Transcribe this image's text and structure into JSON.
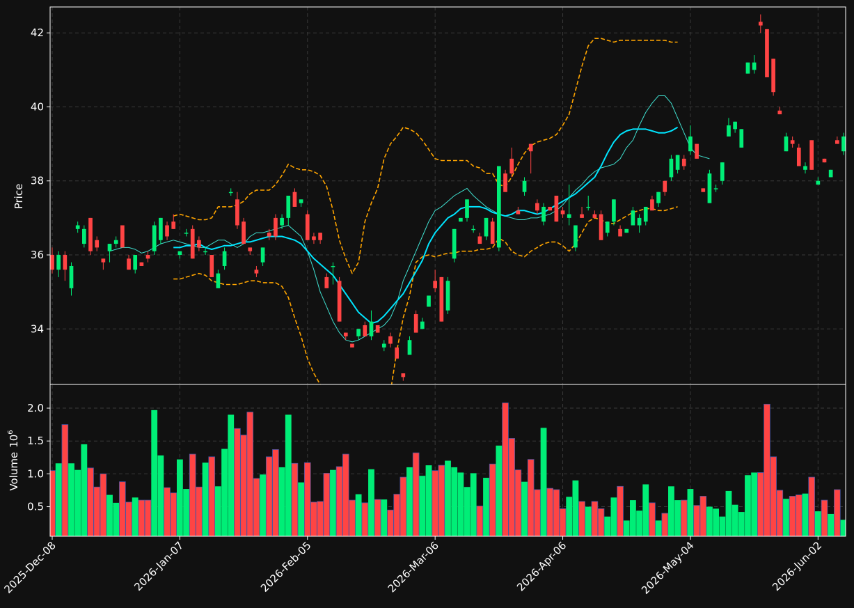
{
  "chart_data": {
    "type": "candlestick",
    "style": "dark background, dashed grid",
    "colors": {
      "up": "#00ee77",
      "down": "#ff4444",
      "background": "#111111",
      "bollinger": "#ffa500",
      "ma_fast": "#40e0d0",
      "ma_slow": "#00e5ff"
    },
    "x_tick_labels": [
      "2025-Dec-08",
      "2026-Jan-07",
      "2026-Feb-05",
      "2026-Mar-06",
      "2026-Apr-06",
      "2026-May-04",
      "2026-Jun-02"
    ],
    "x_tick_index": [
      0,
      20,
      40,
      60,
      80,
      100,
      120
    ],
    "price_panel": {
      "ylabel": "Price",
      "ylim": [
        32.5,
        42.7
      ],
      "yticks": [
        34,
        36,
        38,
        40,
        42
      ],
      "grid": true
    },
    "volume_panel": {
      "ylabel": "Volume",
      "ylabel_exponent": "10",
      "ylabel_power": "6",
      "ylim": [
        0.05,
        2.35
      ],
      "yticks": [
        0.5,
        1.0,
        1.5,
        2.0
      ],
      "ytick_labels": [
        "0.5",
        "1.0",
        "1.5",
        "2.0"
      ],
      "grid": true
    },
    "candles": [
      [
        36.0,
        36.2,
        35.5,
        35.6,
        1.05
      ],
      [
        35.6,
        36.1,
        35.4,
        36.0,
        1.16
      ],
      [
        36.0,
        36.1,
        35.3,
        35.6,
        1.75
      ],
      [
        35.1,
        35.8,
        34.9,
        35.7,
        1.16
      ],
      [
        36.7,
        36.9,
        36.6,
        36.8,
        1.06
      ],
      [
        36.3,
        36.8,
        36.2,
        36.7,
        1.45
      ],
      [
        37.0,
        37.0,
        36.0,
        36.1,
        1.09
      ],
      [
        36.4,
        36.5,
        36.1,
        36.2,
        0.8
      ],
      [
        35.9,
        35.9,
        35.6,
        35.8,
        1.0
      ],
      [
        36.1,
        36.3,
        35.8,
        36.3,
        0.68
      ],
      [
        36.3,
        36.5,
        36.2,
        36.4,
        0.56
      ],
      [
        36.8,
        36.8,
        36.2,
        36.2,
        0.88
      ],
      [
        35.9,
        36.0,
        35.6,
        35.6,
        0.57
      ],
      [
        35.6,
        36.0,
        35.5,
        36.0,
        0.64
      ],
      [
        35.8,
        35.8,
        35.7,
        35.7,
        0.6
      ],
      [
        36.0,
        36.1,
        35.8,
        35.9,
        0.6
      ],
      [
        36.1,
        36.9,
        36.0,
        36.8,
        1.97
      ],
      [
        36.4,
        37.0,
        36.3,
        37.0,
        1.28
      ],
      [
        36.8,
        36.9,
        36.4,
        36.5,
        0.79
      ],
      [
        36.9,
        37.1,
        36.7,
        36.7,
        0.71
      ],
      [
        36.0,
        36.1,
        35.9,
        36.1,
        1.22
      ],
      [
        36.6,
        36.7,
        36.5,
        36.6,
        0.77
      ],
      [
        36.7,
        36.8,
        35.9,
        35.9,
        1.3
      ],
      [
        36.4,
        36.5,
        36.1,
        36.2,
        0.8
      ],
      [
        36.1,
        36.2,
        36.0,
        36.1,
        1.17
      ],
      [
        36.0,
        36.0,
        35.4,
        35.4,
        1.26
      ],
      [
        35.1,
        35.6,
        35.1,
        35.5,
        0.81
      ],
      [
        35.7,
        36.2,
        35.6,
        36.1,
        1.38
      ],
      [
        37.7,
        37.8,
        37.6,
        37.7,
        1.9
      ],
      [
        37.5,
        37.7,
        36.7,
        36.8,
        1.69
      ],
      [
        36.9,
        37.0,
        36.3,
        36.3,
        1.59
      ],
      [
        36.2,
        36.2,
        36.0,
        36.1,
        1.94
      ],
      [
        35.6,
        35.7,
        35.4,
        35.5,
        0.93
      ],
      [
        35.8,
        36.2,
        35.7,
        36.2,
        0.99
      ],
      [
        36.6,
        36.7,
        36.4,
        36.5,
        1.26
      ],
      [
        37.0,
        37.1,
        36.4,
        36.5,
        1.37
      ],
      [
        36.8,
        37.1,
        36.7,
        37.0,
        1.1
      ],
      [
        37.0,
        37.6,
        36.8,
        37.6,
        1.9
      ],
      [
        37.7,
        37.8,
        37.3,
        37.3,
        1.16
      ],
      [
        37.4,
        37.5,
        37.3,
        37.5,
        0.87
      ],
      [
        37.1,
        37.2,
        36.4,
        36.4,
        1.17
      ],
      [
        36.5,
        36.6,
        36.3,
        36.4,
        0.57
      ],
      [
        36.6,
        36.6,
        36.3,
        36.4,
        0.58
      ],
      [
        35.4,
        35.5,
        35.1,
        35.1,
        1.01
      ],
      [
        35.7,
        35.8,
        35.2,
        35.7,
        1.06
      ],
      [
        35.3,
        35.4,
        34.2,
        34.2,
        1.11
      ],
      [
        33.9,
        33.9,
        33.7,
        33.8,
        1.3
      ],
      [
        33.6,
        33.6,
        33.5,
        33.5,
        0.6
      ],
      [
        33.8,
        34.0,
        33.7,
        34.0,
        0.69
      ],
      [
        34.1,
        34.2,
        33.8,
        33.8,
        0.56
      ],
      [
        33.8,
        34.5,
        33.7,
        34.2,
        1.07
      ],
      [
        34.1,
        34.1,
        33.9,
        33.9,
        0.61
      ],
      [
        33.5,
        33.7,
        33.4,
        33.6,
        0.61
      ],
      [
        33.8,
        33.9,
        33.5,
        33.6,
        0.45
      ],
      [
        33.5,
        33.5,
        33.2,
        33.2,
        0.69
      ],
      [
        32.8,
        32.8,
        32.6,
        32.7,
        0.95
      ],
      [
        33.3,
        33.8,
        33.3,
        33.7,
        1.1
      ],
      [
        34.4,
        34.5,
        33.9,
        33.9,
        1.32
      ],
      [
        34.0,
        34.3,
        34.0,
        34.2,
        0.97
      ],
      [
        34.6,
        34.9,
        34.6,
        34.9,
        1.13
      ],
      [
        35.3,
        35.6,
        35.0,
        35.1,
        1.05
      ],
      [
        35.4,
        35.4,
        34.2,
        34.2,
        1.13
      ],
      [
        34.5,
        35.4,
        34.4,
        35.3,
        1.2
      ],
      [
        35.9,
        36.7,
        35.8,
        36.7,
        1.1
      ],
      [
        36.9,
        37.0,
        36.9,
        37.0,
        1.02
      ],
      [
        37.0,
        37.5,
        36.9,
        37.5,
        0.8
      ],
      [
        36.7,
        36.8,
        36.6,
        36.7,
        1.01
      ],
      [
        36.5,
        36.6,
        36.3,
        36.3,
        0.51
      ],
      [
        36.5,
        37.0,
        36.4,
        37.0,
        0.94
      ],
      [
        36.9,
        37.0,
        36.3,
        36.3,
        1.15
      ],
      [
        36.2,
        38.4,
        36.1,
        38.4,
        1.43
      ],
      [
        38.2,
        38.3,
        37.7,
        37.7,
        2.08
      ],
      [
        38.6,
        38.9,
        38.1,
        38.2,
        1.54
      ],
      [
        37.2,
        37.3,
        37.1,
        37.1,
        1.06
      ],
      [
        37.7,
        38.1,
        37.6,
        38.0,
        0.88
      ],
      [
        39.0,
        39.0,
        38.2,
        38.8,
        1.22
      ],
      [
        37.4,
        37.5,
        37.1,
        37.2,
        0.76
      ],
      [
        36.9,
        37.4,
        36.8,
        37.3,
        1.7
      ],
      [
        37.3,
        37.3,
        37.2,
        37.2,
        0.78
      ],
      [
        37.6,
        37.6,
        36.9,
        36.9,
        0.76
      ],
      [
        37.2,
        37.3,
        37.0,
        37.1,
        0.47
      ],
      [
        37.0,
        37.9,
        36.8,
        37.1,
        0.65
      ],
      [
        36.2,
        36.8,
        36.1,
        36.8,
        0.9
      ],
      [
        37.1,
        37.3,
        37.0,
        37.0,
        0.58
      ],
      [
        37.3,
        37.6,
        37.2,
        37.3,
        0.5
      ],
      [
        37.1,
        37.2,
        37.0,
        37.0,
        0.58
      ],
      [
        37.1,
        37.2,
        36.4,
        36.4,
        0.47
      ],
      [
        36.6,
        36.9,
        36.5,
        36.9,
        0.35
      ],
      [
        36.9,
        37.5,
        36.8,
        37.5,
        0.64
      ],
      [
        36.7,
        36.8,
        36.5,
        36.5,
        0.81
      ],
      [
        36.6,
        36.7,
        36.6,
        36.7,
        0.29
      ],
      [
        36.8,
        37.3,
        36.8,
        37.2,
        0.6
      ],
      [
        36.8,
        37.1,
        36.6,
        37.0,
        0.44
      ],
      [
        36.9,
        37.3,
        36.8,
        37.3,
        0.84
      ],
      [
        37.5,
        37.6,
        37.2,
        37.2,
        0.56
      ],
      [
        37.4,
        37.7,
        37.3,
        37.7,
        0.29
      ],
      [
        38.0,
        38.0,
        37.6,
        37.7,
        0.4
      ],
      [
        38.1,
        38.7,
        38.0,
        38.6,
        0.81
      ],
      [
        38.3,
        38.7,
        38.2,
        38.7,
        0.6
      ],
      [
        38.6,
        38.7,
        38.3,
        38.4,
        0.6
      ],
      [
        38.8,
        39.5,
        38.7,
        39.2,
        0.77
      ],
      [
        39.0,
        39.0,
        38.6,
        38.6,
        0.52
      ],
      [
        37.8,
        37.8,
        37.7,
        37.7,
        0.66
      ],
      [
        37.4,
        38.3,
        37.4,
        38.2,
        0.5
      ],
      [
        37.8,
        37.9,
        37.7,
        37.8,
        0.47
      ],
      [
        38.0,
        38.5,
        37.9,
        38.5,
        0.35
      ],
      [
        39.2,
        39.7,
        39.2,
        39.5,
        0.74
      ],
      [
        39.4,
        39.6,
        39.3,
        39.6,
        0.53
      ],
      [
        38.9,
        39.4,
        38.9,
        39.4,
        0.42
      ],
      [
        40.9,
        41.2,
        40.9,
        41.2,
        0.98
      ],
      [
        41.0,
        41.4,
        40.9,
        41.2,
        1.02
      ],
      [
        42.3,
        42.5,
        42.0,
        42.2,
        1.02
      ],
      [
        42.1,
        42.1,
        40.8,
        40.8,
        2.06
      ],
      [
        41.3,
        41.3,
        40.3,
        40.4,
        1.26
      ],
      [
        39.9,
        40.0,
        39.8,
        39.8,
        0.75
      ],
      [
        38.8,
        39.3,
        38.8,
        39.2,
        0.62
      ],
      [
        39.1,
        39.2,
        38.9,
        39.0,
        0.66
      ],
      [
        38.9,
        39.0,
        38.4,
        38.4,
        0.68
      ],
      [
        38.3,
        38.5,
        38.2,
        38.4,
        0.7
      ],
      [
        39.1,
        39.1,
        38.3,
        38.3,
        0.95
      ],
      [
        37.9,
        38.1,
        37.9,
        38.0,
        0.43
      ],
      [
        38.6,
        38.6,
        38.5,
        38.5,
        0.6
      ],
      [
        38.1,
        38.3,
        38.1,
        38.3,
        0.39
      ],
      [
        39.1,
        39.2,
        39.0,
        39.0,
        0.76
      ],
      [
        38.8,
        39.3,
        38.7,
        39.2,
        0.3
      ]
    ],
    "overlays": {
      "ma_fast": {
        "start_index": 9,
        "values": [
          36.1,
          36.15,
          36.2,
          36.2,
          36.15,
          36.05,
          36.1,
          36.2,
          36.3,
          36.35,
          36.4,
          36.35,
          36.3,
          36.25,
          36.2,
          36.2,
          36.3,
          36.4,
          36.4,
          36.3,
          36.2,
          36.3,
          36.5,
          36.6,
          36.6,
          36.65,
          36.7,
          36.75,
          36.8,
          36.65,
          36.5,
          36.1,
          35.6,
          35.0,
          34.6,
          34.2,
          33.9,
          33.7,
          33.65,
          33.7,
          33.8,
          33.9,
          34.0,
          34.1,
          34.3,
          34.7,
          35.3,
          35.7,
          36.1,
          36.5,
          36.9,
          37.2,
          37.3,
          37.45,
          37.6,
          37.7,
          37.8,
          37.6,
          37.45,
          37.3,
          37.2,
          37.1,
          37.05,
          37.0,
          36.95,
          36.95,
          37.0,
          37.0,
          37.05,
          37.1,
          37.2,
          37.35,
          37.55,
          37.75,
          37.9,
          38.1,
          38.25,
          38.35,
          38.4,
          38.45,
          38.6,
          38.9,
          39.1,
          39.5,
          39.85,
          40.1,
          40.3,
          40.3,
          40.1,
          39.7,
          39.3,
          38.9,
          38.7,
          38.65,
          38.6
        ]
      },
      "ma_slow": {
        "start_index": 19,
        "values": [
          36.2,
          36.2,
          36.25,
          36.25,
          36.3,
          36.2,
          36.15,
          36.2,
          36.25,
          36.25,
          36.3,
          36.35,
          36.35,
          36.4,
          36.45,
          36.5,
          36.5,
          36.5,
          36.45,
          36.4,
          36.3,
          36.1,
          35.9,
          35.75,
          35.6,
          35.45,
          35.2,
          34.95,
          34.7,
          34.45,
          34.3,
          34.15,
          34.2,
          34.35,
          34.55,
          34.75,
          34.95,
          35.25,
          35.55,
          35.85,
          36.3,
          36.6,
          36.8,
          37.0,
          37.1,
          37.25,
          37.3,
          37.3,
          37.3,
          37.25,
          37.15,
          37.1,
          37.05,
          37.1,
          37.2,
          37.2,
          37.15,
          37.1,
          37.15,
          37.25,
          37.35,
          37.45,
          37.55,
          37.65,
          37.8,
          37.95,
          38.1,
          38.4,
          38.75,
          39.05,
          39.25,
          39.35,
          39.4,
          39.4,
          39.4,
          39.35,
          39.3,
          39.3,
          39.35,
          39.45
        ]
      },
      "bollinger_upper": {
        "start_index": 19,
        "values": [
          37.05,
          37.1,
          37.05,
          37.0,
          36.95,
          36.95,
          37.0,
          37.3,
          37.3,
          37.3,
          37.35,
          37.45,
          37.65,
          37.75,
          37.75,
          37.75,
          37.9,
          38.15,
          38.45,
          38.35,
          38.3,
          38.3,
          38.25,
          38.15,
          37.85,
          37.2,
          36.4,
          35.9,
          35.5,
          35.8,
          36.9,
          37.4,
          37.8,
          38.6,
          39.0,
          39.2,
          39.45,
          39.4,
          39.3,
          39.1,
          38.85,
          38.6,
          38.55,
          38.55,
          38.55,
          38.55,
          38.55,
          38.4,
          38.35,
          38.2,
          38.2,
          37.9,
          37.85,
          38.1,
          38.45,
          38.75,
          38.95,
          39.05,
          39.1,
          39.15,
          39.25,
          39.5,
          39.8,
          40.45,
          41.1,
          41.65,
          41.85,
          41.85,
          41.8,
          41.75,
          41.8,
          41.8,
          41.8,
          41.8,
          41.8,
          41.8,
          41.8,
          41.8,
          41.75,
          41.75
        ]
      },
      "bollinger_lower": {
        "start_index": 19,
        "values": [
          35.35,
          35.35,
          35.4,
          35.45,
          35.5,
          35.45,
          35.3,
          35.25,
          35.2,
          35.2,
          35.2,
          35.25,
          35.3,
          35.3,
          35.25,
          35.25,
          35.25,
          35.15,
          34.85,
          34.3,
          33.8,
          33.2,
          32.8,
          32.5,
          32.3,
          32.2,
          32.1,
          32.1,
          32.3,
          32.1,
          31.8,
          31.6,
          31.3,
          31.6,
          32.3,
          33.4,
          34.3,
          34.9,
          35.8,
          35.95,
          36.0,
          35.95,
          36.0,
          36.05,
          36.05,
          36.1,
          36.1,
          36.1,
          36.15,
          36.15,
          36.2,
          36.45,
          36.35,
          36.1,
          36.0,
          35.95,
          36.1,
          36.2,
          36.3,
          36.35,
          36.35,
          36.25,
          36.1,
          36.3,
          36.6,
          36.9,
          37.0,
          36.95,
          36.85,
          36.85,
          36.95,
          37.05,
          37.15,
          37.2,
          37.25,
          37.25,
          37.2,
          37.2,
          37.25,
          37.3
        ]
      }
    }
  }
}
